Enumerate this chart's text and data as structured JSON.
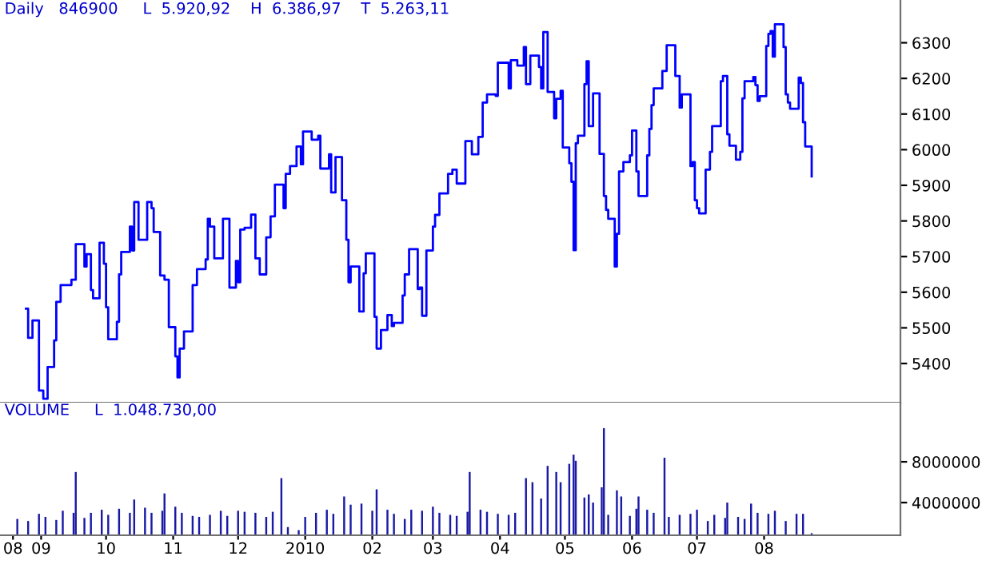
{
  "chart_data": [
    {
      "type": "step",
      "title": "Daily   846900     L  5.920,92    H  6.386,97    T  5.263,11",
      "xlim": [
        "2009-08-13",
        "2010-10-03"
      ],
      "ylim": [
        5290,
        6420
      ],
      "yticks": [
        5400,
        5500,
        5600,
        5700,
        5800,
        5900,
        6000,
        6100,
        6200,
        6300
      ],
      "tick_labels": "y",
      "series": [
        {
          "color": "#0000ff",
          "x": [
            "2009-08-25",
            "2009-08-26",
            "2009-08-28",
            "2009-08-31",
            "2009-09-02",
            "2009-09-04",
            "2009-09-07",
            "2009-09-08",
            "2009-09-10",
            "2009-09-15",
            "2009-09-17",
            "2009-09-21",
            "2009-09-22",
            "2009-09-24",
            "2009-09-25",
            "2009-09-28",
            "2009-09-30",
            "2009-10-01",
            "2009-10-02",
            "2009-10-06",
            "2009-10-07",
            "2009-10-08",
            "2009-10-12",
            "2009-10-13",
            "2009-10-14",
            "2009-10-16",
            "2009-10-20",
            "2009-10-22",
            "2009-10-23",
            "2009-10-26",
            "2009-10-28",
            "2009-10-30",
            "2009-11-02",
            "2009-11-03",
            "2009-11-04",
            "2009-11-06",
            "2009-11-10",
            "2009-11-12",
            "2009-11-16",
            "2009-11-17",
            "2009-11-18",
            "2009-11-20",
            "2009-11-24",
            "2009-11-27",
            "2009-11-30",
            "2009-12-01",
            "2009-12-02",
            "2009-12-04",
            "2009-12-07",
            "2009-12-09",
            "2009-12-11",
            "2009-12-14",
            "2009-12-16",
            "2009-12-18",
            "2009-12-22",
            "2009-12-23",
            "2009-12-25",
            "2009-12-28",
            "2009-12-30",
            "2009-12-31",
            "2010-01-04",
            "2010-01-07",
            "2010-01-08",
            "2010-01-12",
            "2010-01-13",
            "2010-01-15",
            "2010-01-18",
            "2010-01-20",
            "2010-01-21",
            "2010-01-22",
            "2010-01-26",
            "2010-01-28",
            "2010-01-29",
            "2010-02-02",
            "2010-02-03",
            "2010-02-05",
            "2010-02-08",
            "2010-02-10",
            "2010-02-11",
            "2010-02-15",
            "2010-02-16",
            "2010-02-18",
            "2010-02-22",
            "2010-02-23",
            "2010-02-24",
            "2010-02-26",
            "2010-03-01",
            "2010-03-02",
            "2010-03-04",
            "2010-03-08",
            "2010-03-10",
            "2010-03-12",
            "2010-03-16",
            "2010-03-19",
            "2010-03-22",
            "2010-03-24",
            "2010-03-26",
            "2010-03-30",
            "2010-03-31",
            "2010-04-05",
            "2010-04-06",
            "2010-04-09",
            "2010-04-12",
            "2010-04-13",
            "2010-04-15",
            "2010-04-19",
            "2010-04-20",
            "2010-04-21",
            "2010-04-23",
            "2010-04-26",
            "2010-04-27",
            "2010-04-29",
            "2010-04-30",
            "2010-05-03",
            "2010-05-04",
            "2010-05-05",
            "2010-05-06",
            "2010-05-07",
            "2010-05-10",
            "2010-05-11",
            "2010-05-12",
            "2010-05-14",
            "2010-05-17",
            "2010-05-19",
            "2010-05-20",
            "2010-05-21",
            "2010-05-24",
            "2010-05-25",
            "2010-05-26",
            "2010-05-28",
            "2010-05-31",
            "2010-06-01",
            "2010-06-03",
            "2010-06-04",
            "2010-06-08",
            "2010-06-09",
            "2010-06-10",
            "2010-06-11",
            "2010-06-15",
            "2010-06-17",
            "2010-06-21",
            "2010-06-23",
            "2010-06-24",
            "2010-06-28",
            "2010-06-29",
            "2010-06-30",
            "2010-07-01",
            "2010-07-02",
            "2010-07-05",
            "2010-07-07",
            "2010-07-08",
            "2010-07-12",
            "2010-07-13",
            "2010-07-15",
            "2010-07-16",
            "2010-07-19",
            "2010-07-21",
            "2010-07-22",
            "2010-07-23",
            "2010-07-27",
            "2010-07-28",
            "2010-07-29",
            "2010-07-30",
            "2010-08-02",
            "2010-08-03",
            "2010-08-04",
            "2010-08-05",
            "2010-08-06",
            "2010-08-10",
            "2010-08-11",
            "2010-08-12",
            "2010-08-13",
            "2010-08-17",
            "2010-08-18",
            "2010-08-19",
            "2010-08-20",
            "2010-08-23"
          ],
          "values": [
            5554,
            5472,
            5521,
            5324,
            5301,
            5390,
            5465,
            5573,
            5620,
            5635,
            5735,
            5672,
            5707,
            5606,
            5583,
            5739,
            5680,
            5558,
            5468,
            5517,
            5650,
            5713,
            5784,
            5717,
            5853,
            5747,
            5853,
            5836,
            5769,
            5647,
            5635,
            5502,
            5420,
            5361,
            5442,
            5490,
            5620,
            5665,
            5692,
            5806,
            5784,
            5695,
            5806,
            5613,
            5688,
            5628,
            5776,
            5781,
            5818,
            5695,
            5650,
            5754,
            5813,
            5902,
            5836,
            5932,
            5954,
            6009,
            5959,
            6051,
            6028,
            6039,
            5947,
            5987,
            5880,
            5979,
            5858,
            5747,
            5628,
            5672,
            5546,
            5653,
            5709,
            5531,
            5442,
            5494,
            5536,
            5505,
            5514,
            5591,
            5650,
            5721,
            5609,
            5613,
            5534,
            5717,
            5784,
            5817,
            5877,
            5932,
            5944,
            5905,
            6024,
            5987,
            6036,
            6132,
            6155,
            6151,
            6244,
            6172,
            6251,
            6236,
            6288,
            6184,
            6264,
            6232,
            6172,
            6330,
            6162,
            6088,
            6143,
            6165,
            6006,
            5962,
            5910,
            5718,
            6018,
            6039,
            6184,
            6248,
            6066,
            6158,
            5988,
            5870,
            5831,
            5806,
            5672,
            5764,
            5939,
            5965,
            5984,
            6054,
            5939,
            5870,
            5984,
            6058,
            6125,
            6172,
            6221,
            6293,
            6207,
            6118,
            6155,
            5954,
            5965,
            5858,
            5836,
            5821,
            5944,
            5994,
            6066,
            6192,
            6207,
            6043,
            6011,
            5972,
            5994,
            6144,
            6192,
            6204,
            6181,
            6137,
            6150,
            6291,
            6325,
            6333,
            6261,
            6352,
            6288,
            6155,
            6132,
            6115,
            6202,
            6187,
            6077,
            6009,
            5925
          ]
        }
      ]
    },
    {
      "type": "bar",
      "title": "VOLUME     L  1.048.730,00",
      "xlim": [
        "2009-08-13",
        "2010-10-03"
      ],
      "ylim": [
        800000,
        13800000
      ],
      "yticks": [
        4000000,
        8000000
      ],
      "xticks": [
        {
          "value": "2009-08-19",
          "label": "08"
        },
        {
          "value": "2009-09-01",
          "label": "09"
        },
        {
          "value": "2009-10-01",
          "label": "10"
        },
        {
          "value": "2009-11-01",
          "label": "11"
        },
        {
          "value": "2009-12-01",
          "label": "12"
        },
        {
          "value": "2010-01-01",
          "label": "2010"
        },
        {
          "value": "2010-02-01",
          "label": "02"
        },
        {
          "value": "2010-03-01",
          "label": "03"
        },
        {
          "value": "2010-04-01",
          "label": "04"
        },
        {
          "value": "2010-05-01",
          "label": "05"
        },
        {
          "value": "2010-06-01",
          "label": "06"
        },
        {
          "value": "2010-07-01",
          "label": "07"
        },
        {
          "value": "2010-08-01",
          "label": "08"
        }
      ],
      "series": [
        {
          "color": "#1a1aa6",
          "x": [
            "2009-08-21",
            "2009-08-26",
            "2009-08-31",
            "2009-09-03",
            "2009-09-08",
            "2009-09-11",
            "2009-09-16",
            "2009-09-17",
            "2009-09-21",
            "2009-09-24",
            "2009-09-29",
            "2009-10-02",
            "2009-10-07",
            "2009-10-12",
            "2009-10-14",
            "2009-10-19",
            "2009-10-22",
            "2009-10-27",
            "2009-10-28",
            "2009-11-02",
            "2009-11-05",
            "2009-11-10",
            "2009-11-13",
            "2009-11-18",
            "2009-11-23",
            "2009-11-26",
            "2009-12-01",
            "2009-12-04",
            "2009-12-09",
            "2009-12-14",
            "2009-12-17",
            "2009-12-21",
            "2009-12-24",
            "2009-12-29",
            "2010-01-01",
            "2010-01-06",
            "2010-01-11",
            "2010-01-14",
            "2010-01-19",
            "2010-01-22",
            "2010-01-27",
            "2010-02-01",
            "2010-02-03",
            "2010-02-08",
            "2010-02-11",
            "2010-02-16",
            "2010-02-19",
            "2010-02-24",
            "2010-03-01",
            "2010-03-04",
            "2010-03-09",
            "2010-03-12",
            "2010-03-17",
            "2010-03-18",
            "2010-03-23",
            "2010-03-26",
            "2010-03-31",
            "2010-04-05",
            "2010-04-08",
            "2010-04-13",
            "2010-04-16",
            "2010-04-20",
            "2010-04-23",
            "2010-04-27",
            "2010-04-29",
            "2010-05-03",
            "2010-05-05",
            "2010-05-06",
            "2010-05-10",
            "2010-05-12",
            "2010-05-14",
            "2010-05-18",
            "2010-05-19",
            "2010-05-21",
            "2010-05-25",
            "2010-05-27",
            "2010-05-31",
            "2010-06-03",
            "2010-06-04",
            "2010-06-08",
            "2010-06-11",
            "2010-06-16",
            "2010-06-18",
            "2010-06-23",
            "2010-06-28",
            "2010-07-01",
            "2010-07-06",
            "2010-07-09",
            "2010-07-14",
            "2010-07-15",
            "2010-07-20",
            "2010-07-23",
            "2010-07-26",
            "2010-07-29",
            "2010-08-03",
            "2010-08-06",
            "2010-08-11",
            "2010-08-16",
            "2010-08-19",
            "2010-08-23"
          ],
          "values": [
            2400000,
            2200000,
            2900000,
            2600000,
            2300000,
            3200000,
            3000000,
            7000000,
            2500000,
            3000000,
            3300000,
            2800000,
            3400000,
            3000000,
            4300000,
            3500000,
            3000000,
            3200000,
            4900000,
            3600000,
            3000000,
            2700000,
            2600000,
            2800000,
            3200000,
            2700000,
            3200000,
            3100000,
            3000000,
            2600000,
            3100000,
            6400000,
            1600000,
            1300000,
            2600000,
            3000000,
            3300000,
            2900000,
            4600000,
            3800000,
            3900000,
            3200000,
            5300000,
            3300000,
            2900000,
            2400000,
            3300000,
            3200000,
            3600000,
            3000000,
            2800000,
            2700000,
            3100000,
            7000000,
            3300000,
            3100000,
            2900000,
            2800000,
            3000000,
            6400000,
            6000000,
            4400000,
            7600000,
            7000000,
            6000000,
            7800000,
            8700000,
            8100000,
            4500000,
            4800000,
            4000000,
            5500000,
            11300000,
            2800000,
            5200000,
            4600000,
            2700000,
            3400000,
            4600000,
            3300000,
            3000000,
            8400000,
            2600000,
            2800000,
            2900000,
            3300000,
            2200000,
            2800000,
            2500000,
            4000000,
            2600000,
            2400000,
            3900000,
            3000000,
            2900000,
            3200000,
            2200000,
            2900000,
            2900000,
            1000000
          ]
        }
      ]
    }
  ]
}
